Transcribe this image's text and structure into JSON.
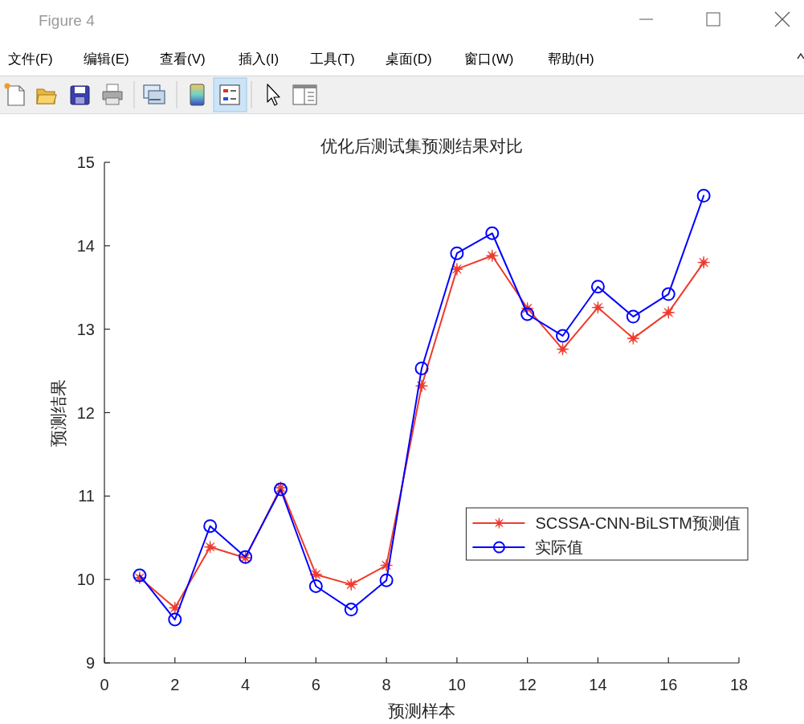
{
  "chart_data": {
    "type": "line",
    "title": "优化后测试集预测结果对比",
    "xlabel": "预测样本",
    "ylabel": "预测结果",
    "x": [
      1,
      2,
      3,
      4,
      5,
      6,
      7,
      8,
      9,
      10,
      11,
      12,
      13,
      14,
      15,
      16,
      17
    ],
    "series": [
      {
        "name": "SCSSA-CNN-BiLSTM预测值",
        "color": "#ee3a2c",
        "marker": "star",
        "values": [
          10.02,
          9.66,
          10.39,
          10.26,
          11.1,
          10.06,
          9.94,
          10.17,
          12.32,
          13.72,
          13.88,
          13.25,
          12.76,
          13.26,
          12.89,
          13.2,
          13.8
        ]
      },
      {
        "name": "实际值",
        "color": "#0000ff",
        "marker": "circle",
        "values": [
          10.05,
          9.52,
          10.64,
          10.27,
          11.08,
          9.92,
          9.64,
          9.99,
          12.53,
          13.91,
          14.15,
          13.18,
          12.92,
          13.51,
          13.15,
          13.42,
          14.6
        ]
      }
    ],
    "xlim": [
      0,
      18
    ],
    "xticks": [
      0,
      2,
      4,
      6,
      8,
      10,
      12,
      14,
      16,
      18
    ],
    "ylim": [
      9,
      15
    ],
    "yticks": [
      9,
      10,
      11,
      12,
      13,
      14,
      15
    ],
    "legend": "bottom right",
    "line_style": "solid",
    "annotations": [
      "Figure 4",
      "文件(F)",
      "编辑(E)",
      "查看(V)",
      "插入(I)",
      "工具(T)",
      "桌面(D)",
      "窗口(W)",
      "帮助(H)"
    ]
  }
}
